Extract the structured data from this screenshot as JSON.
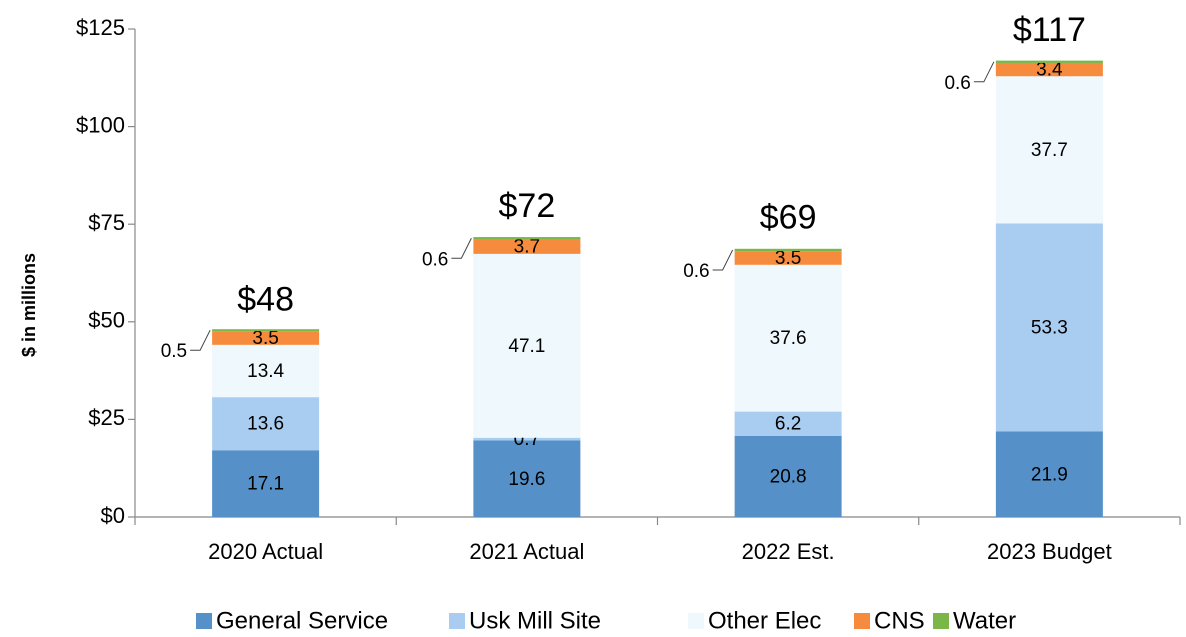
{
  "chart_data": {
    "type": "stacked_bar",
    "y_label": "$ in millions",
    "categories": [
      "2020 Actual",
      "2021 Actual",
      "2022 Est.",
      "2023 Budget"
    ],
    "series": [
      {
        "name": "General Service",
        "color": "#5591c8",
        "values": [
          17.1,
          19.6,
          20.8,
          21.9
        ]
      },
      {
        "name": "Usk Mill Site",
        "color": "#a9cdf0",
        "values": [
          13.6,
          0.7,
          6.2,
          53.3
        ]
      },
      {
        "name": "Other Elec",
        "color": "#eef8fd",
        "values": [
          13.4,
          47.1,
          37.6,
          37.7
        ]
      },
      {
        "name": "CNS",
        "color": "#f68b3d",
        "values": [
          3.5,
          3.7,
          3.5,
          3.4
        ]
      },
      {
        "name": "Water",
        "color": "#7ab648",
        "values": [
          0.5,
          0.6,
          0.6,
          0.6
        ]
      }
    ],
    "totals": [
      48,
      72,
      69,
      117
    ],
    "total_labels": [
      "$48",
      "$72",
      "$69",
      "$117"
    ],
    "ylim": [
      0,
      125
    ],
    "yticks": [
      {
        "value": 0,
        "label": "$0"
      },
      {
        "value": 25,
        "label": "$25"
      },
      {
        "value": 50,
        "label": "$50"
      },
      {
        "value": 75,
        "label": "$75"
      },
      {
        "value": 100,
        "label": "$100"
      },
      {
        "value": 125,
        "label": "$125"
      }
    ],
    "grid": false
  }
}
